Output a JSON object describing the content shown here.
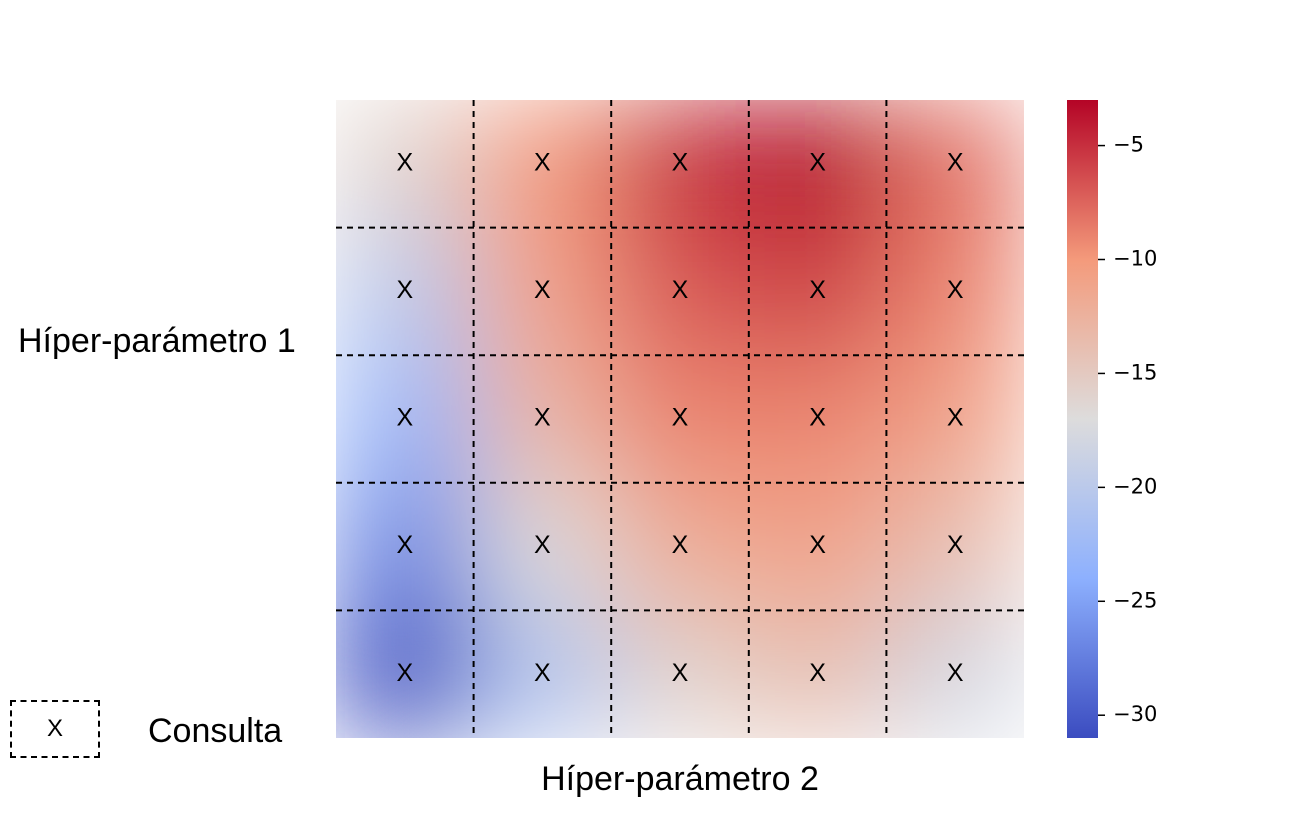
{
  "chart_data": {
    "type": "heatmap",
    "title": "",
    "xlabel": "Híper-parámetro 2",
    "ylabel": "Híper-parámetro 1",
    "rows": 5,
    "cols": 5,
    "cell_marker": "X",
    "values": [
      [
        -16,
        -10,
        -5,
        -3,
        -8
      ],
      [
        -20,
        -11,
        -7,
        -6,
        -9
      ],
      [
        -23,
        -13,
        -9,
        -9,
        -11
      ],
      [
        -27,
        -17,
        -12,
        -11,
        -14
      ],
      [
        -31,
        -21,
        -16,
        -14,
        -18
      ]
    ],
    "colorbar": {
      "colormap": "coolwarm",
      "min": -31,
      "max": -3,
      "ticks": [
        -5,
        -10,
        -15,
        -20,
        -25,
        -30
      ],
      "tick_labels": [
        "−5",
        "−10",
        "−15",
        "−20",
        "−25",
        "−30"
      ]
    },
    "grid": "dashed",
    "legend": {
      "marker": "X",
      "label": "Consulta",
      "position": "bottom-left"
    }
  }
}
